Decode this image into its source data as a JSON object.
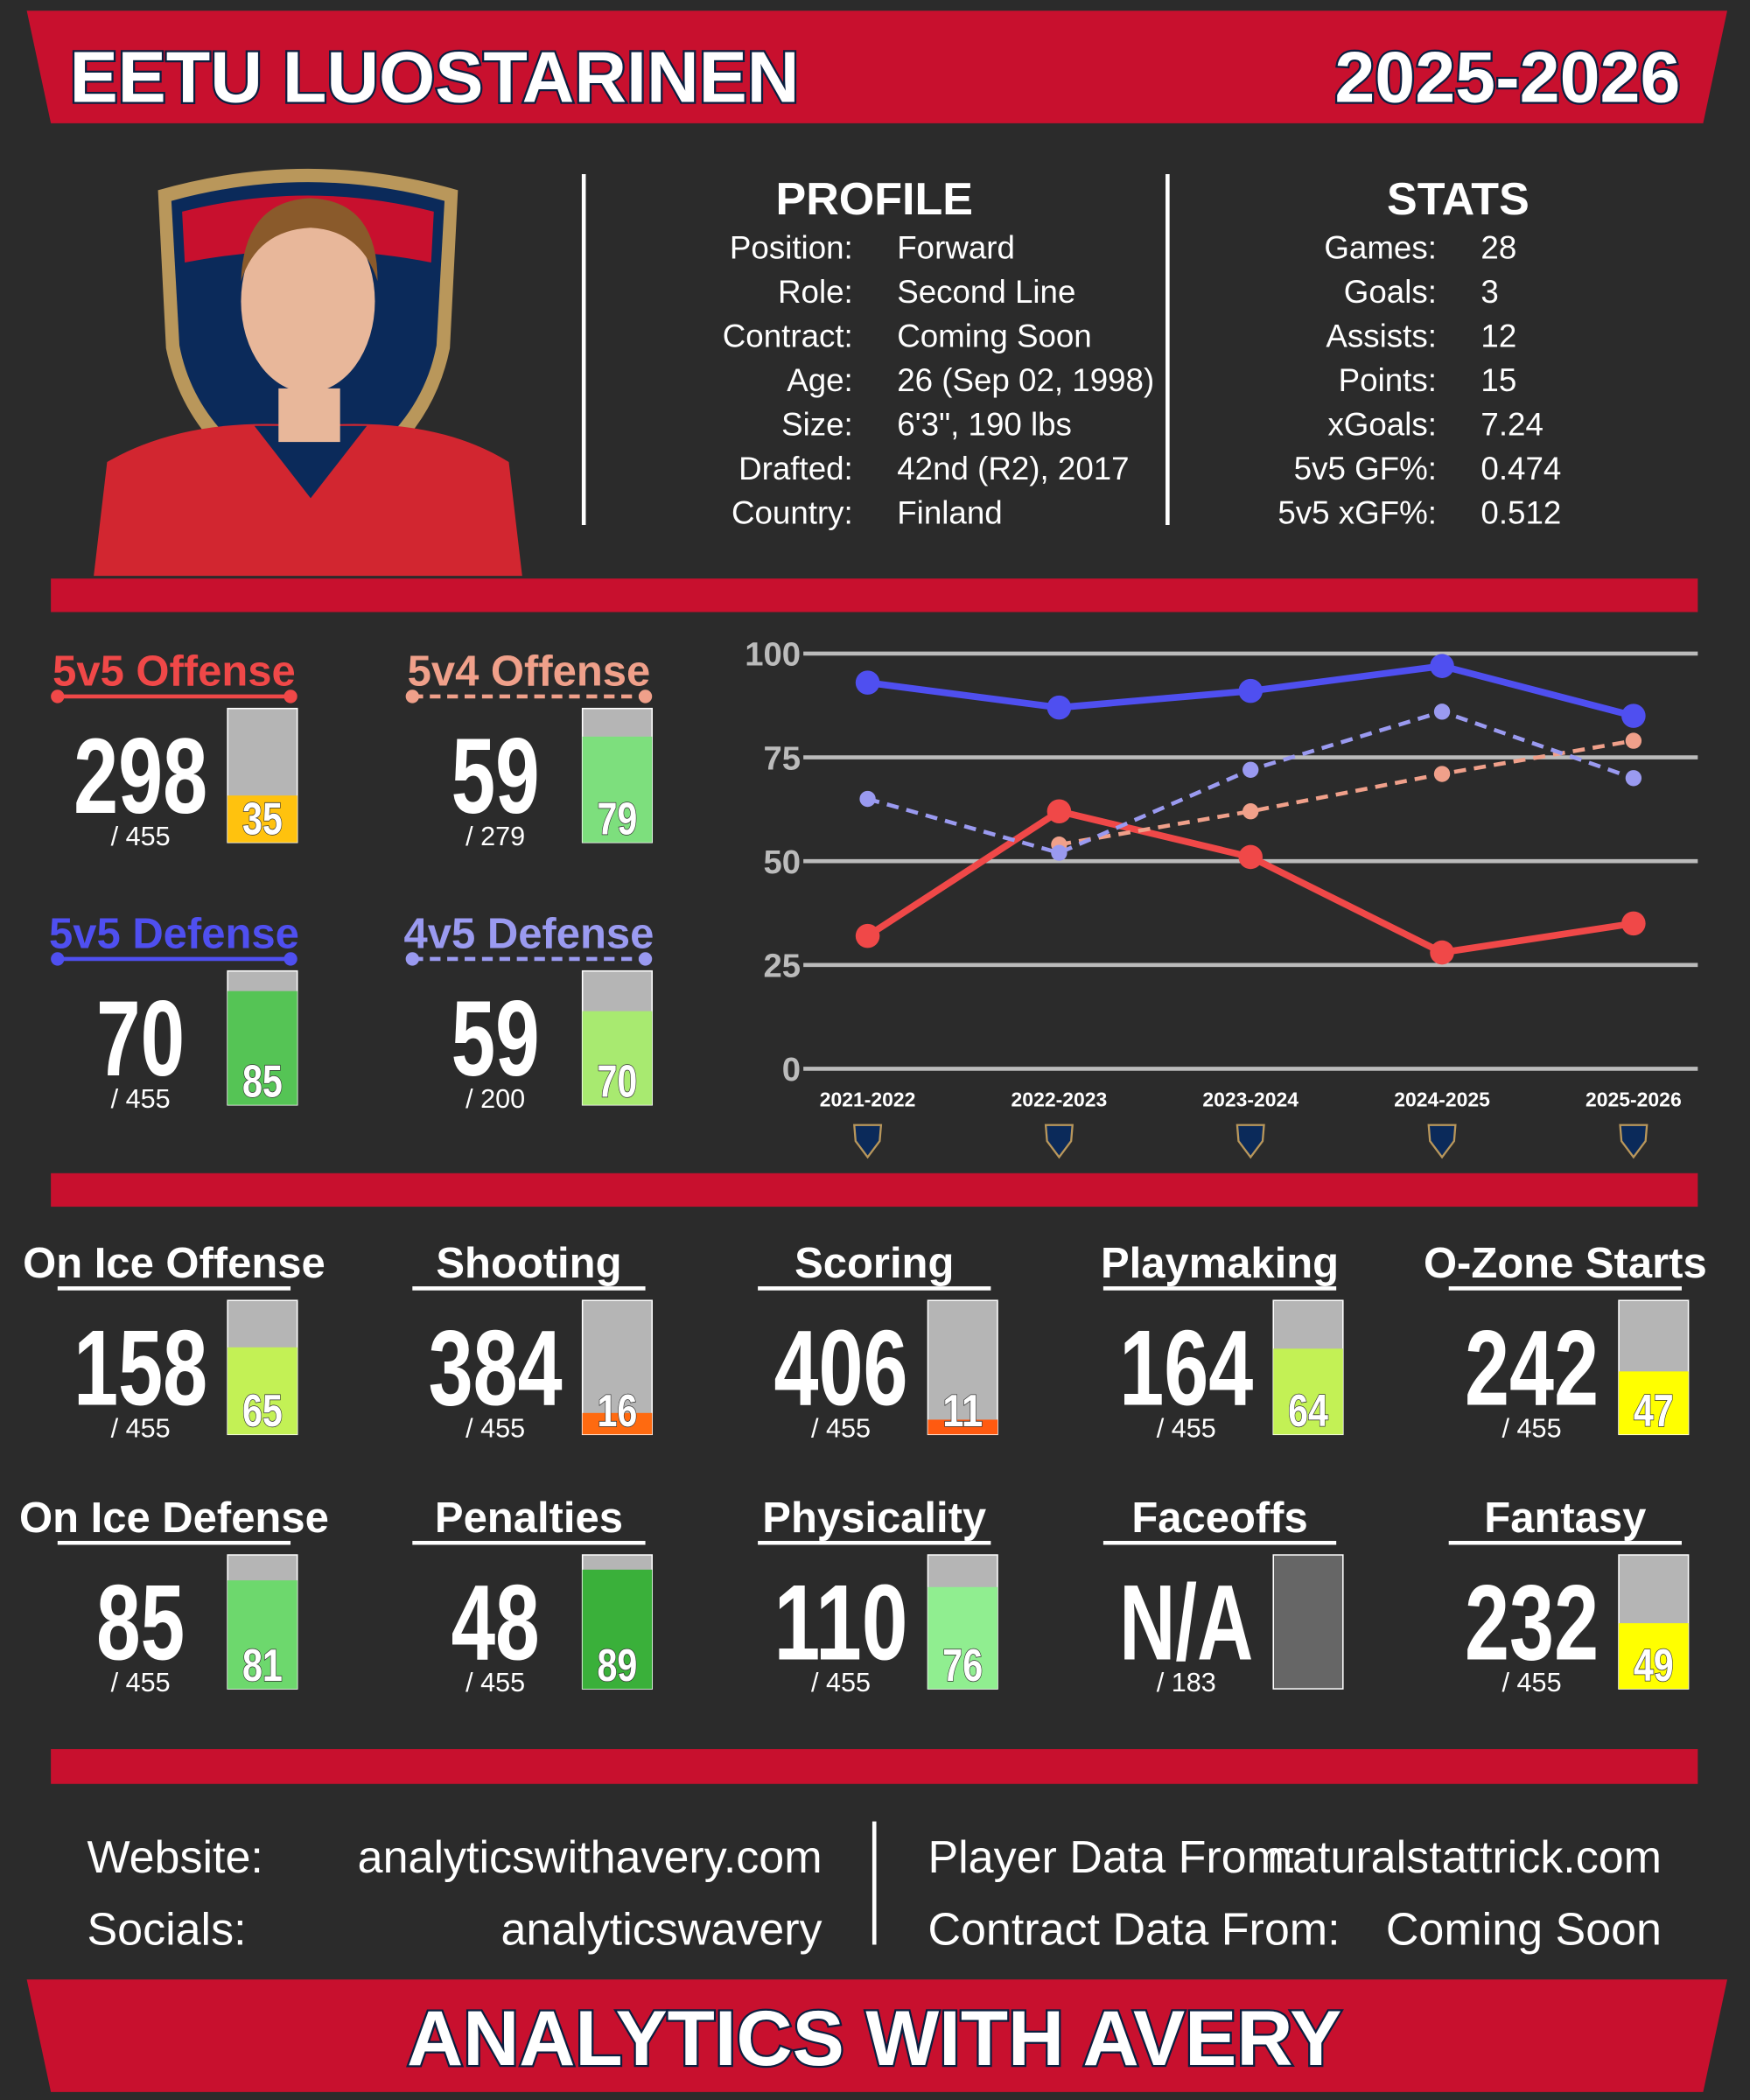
{
  "header": {
    "name": "EETU LUOSTARINEN",
    "season": "2025-2026"
  },
  "profile": {
    "title": "PROFILE",
    "rows": [
      [
        "Position:",
        "Forward"
      ],
      [
        "Role:",
        "Second Line"
      ],
      [
        "Contract:",
        "Coming Soon"
      ],
      [
        "Age:",
        "26 (Sep 02, 1998)"
      ],
      [
        "Size:",
        "6'3\", 190 lbs"
      ],
      [
        "Drafted:",
        "42nd (R2), 2017"
      ],
      [
        "Country:",
        "Finland"
      ]
    ]
  },
  "stats": {
    "title": "STATS",
    "rows": [
      [
        "Games:",
        "28"
      ],
      [
        "Goals:",
        "3"
      ],
      [
        "Assists:",
        "12"
      ],
      [
        "Points:",
        "15"
      ],
      [
        "xGoals:",
        "7.24"
      ],
      [
        "5v5 GF%:",
        "0.474"
      ],
      [
        "5v5 xGF%:",
        "0.512"
      ]
    ]
  },
  "ratings": [
    {
      "value": 298,
      "total": "/ 455",
      "percentile": 35,
      "color": "#ffc20e"
    },
    {
      "value": 59,
      "total": "/ 279",
      "percentile": 79,
      "color": "#7ddf7d"
    },
    {
      "value": 70,
      "total": "/ 455",
      "percentile": 85,
      "color": "#55c455"
    },
    {
      "value": 59,
      "total": "/ 200",
      "percentile": 70,
      "color": "#a8ea70"
    }
  ],
  "chart_data": {
    "type": "line",
    "categories": [
      "2021-2022",
      "2022-2023",
      "2023-2024",
      "2024-2025",
      "2025-2026"
    ],
    "ylim": [
      0,
      100
    ],
    "yticks": [
      0,
      25,
      50,
      75,
      100
    ],
    "grid": true,
    "series": [
      {
        "name": "5v5 Offense",
        "color": "#f04848",
        "dashed": false,
        "values": [
          32,
          62,
          51,
          28,
          35
        ]
      },
      {
        "name": "5v4 Offense",
        "color": "#f0a08a",
        "dashed": true,
        "values": [
          null,
          54,
          62,
          71,
          79
        ]
      },
      {
        "name": "5v5 Defense",
        "color": "#4f4ff0",
        "dashed": false,
        "values": [
          93,
          87,
          91,
          97,
          85
        ]
      },
      {
        "name": "4v5 Defense",
        "color": "#9a9af0",
        "dashed": true,
        "values": [
          65,
          52,
          72,
          86,
          70
        ]
      }
    ]
  },
  "metrics": [
    {
      "name": "On Ice Offense",
      "value": 158,
      "total": "/ 455",
      "percentile": 65,
      "color": "#c3f155"
    },
    {
      "name": "Shooting",
      "value": 384,
      "total": "/ 455",
      "percentile": 16,
      "color": "#ff6a10"
    },
    {
      "name": "Scoring",
      "value": 406,
      "total": "/ 455",
      "percentile": 11,
      "color": "#ff5a10"
    },
    {
      "name": "Playmaking",
      "value": 164,
      "total": "/ 455",
      "percentile": 64,
      "color": "#c3f155"
    },
    {
      "name": "O-Zone Starts",
      "value": 242,
      "total": "/ 455",
      "percentile": 47,
      "color": "#ffff00"
    },
    {
      "name": "On Ice Defense",
      "value": 85,
      "total": "/ 455",
      "percentile": 81,
      "color": "#6dd86d"
    },
    {
      "name": "Penalties",
      "value": 48,
      "total": "/ 455",
      "percentile": 89,
      "color": "#3ab03a"
    },
    {
      "name": "Physicality",
      "value": 110,
      "total": "/ 455",
      "percentile": 76,
      "color": "#90ee90"
    },
    {
      "name": "Faceoffs",
      "value": "N/A",
      "total": "/ 183",
      "percentile": null,
      "color": null
    },
    {
      "name": "Fantasy",
      "value": 232,
      "total": "/ 455",
      "percentile": 49,
      "color": "#ffff00"
    }
  ],
  "footer": {
    "left": [
      [
        "Website:",
        "analyticswithavery.com"
      ],
      [
        "Socials:",
        "analyticswavery"
      ]
    ],
    "right": [
      [
        "Player Data From:",
        "naturalstattrick.com"
      ],
      [
        "Contract Data From:",
        "Coming Soon"
      ]
    ]
  },
  "banner": "ANALYTICS WITH AVERY"
}
